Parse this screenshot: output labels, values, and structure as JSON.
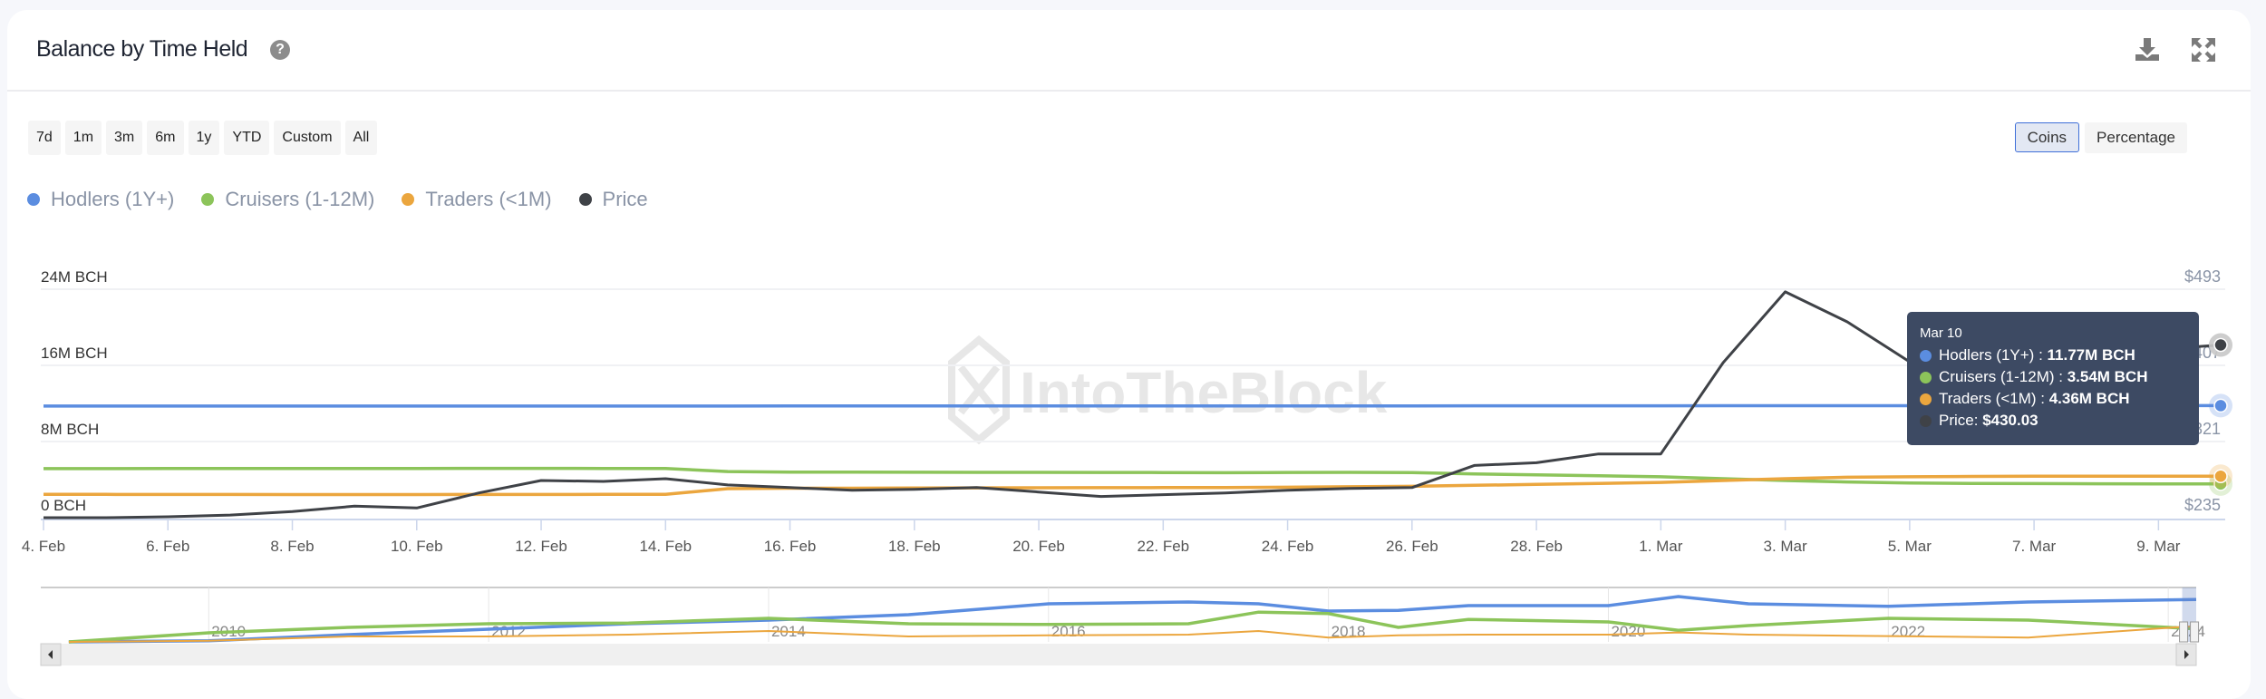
{
  "header": {
    "title": "Balance by Time Held",
    "help_icon": "question-circle-icon",
    "download_icon": "download-icon",
    "expand_icon": "expand-icon"
  },
  "ranges": [
    "7d",
    "1m",
    "3m",
    "6m",
    "1y",
    "YTD",
    "Custom",
    "All"
  ],
  "units": {
    "options": [
      "Coins",
      "Percentage"
    ],
    "selected": "Coins"
  },
  "watermark": "IntoTheBlock",
  "colors": {
    "hodlers": "#5b8de0",
    "cruisers": "#8cc45a",
    "traders": "#eba63e",
    "price": "#3f4247"
  },
  "tooltip": {
    "date": "Mar 10",
    "rows": [
      {
        "label": "Hodlers (1Y+) : ",
        "value": "11.77M BCH"
      },
      {
        "label": "Cruisers (1-12M) : ",
        "value": "3.54M BCH"
      },
      {
        "label": "Traders (<1M) : ",
        "value": "4.36M BCH"
      },
      {
        "label": "Price: ",
        "value": "$430.03"
      }
    ]
  },
  "chart_data": {
    "type": "line",
    "title": "Balance by Time Held",
    "legend": [
      "Hodlers (1Y+)",
      "Cruisers (1-12M)",
      "Traders (<1M)",
      "Price"
    ],
    "legend_position": "top-left",
    "x": [
      "Feb 4",
      "Feb 5",
      "Feb 6",
      "Feb 7",
      "Feb 8",
      "Feb 9",
      "Feb 10",
      "Feb 11",
      "Feb 12",
      "Feb 13",
      "Feb 14",
      "Feb 15",
      "Feb 16",
      "Feb 17",
      "Feb 18",
      "Feb 19",
      "Feb 20",
      "Feb 21",
      "Feb 22",
      "Feb 23",
      "Feb 24",
      "Feb 25",
      "Feb 26",
      "Feb 27",
      "Feb 28",
      "Feb 29",
      "Mar 1",
      "Mar 2",
      "Mar 3",
      "Mar 4",
      "Mar 5",
      "Mar 6",
      "Mar 7",
      "Mar 8",
      "Mar 9",
      "Mar 10"
    ],
    "x_ticks": [
      "4. Feb",
      "6. Feb",
      "8. Feb",
      "10. Feb",
      "12. Feb",
      "14. Feb",
      "16. Feb",
      "18. Feb",
      "20. Feb",
      "22. Feb",
      "24. Feb",
      "26. Feb",
      "28. Feb",
      "1. Mar",
      "3. Mar",
      "5. Mar",
      "7. Mar",
      "9. Mar"
    ],
    "y_left": {
      "ticks": [
        "0 BCH",
        "8M BCH",
        "16M BCH",
        "24M BCH"
      ],
      "range": [
        0,
        24
      ],
      "unit": "M BCH"
    },
    "y_right": {
      "ticks": [
        "$235",
        "$321",
        "$407",
        "$493"
      ],
      "range": [
        235,
        493
      ]
    },
    "series": [
      {
        "name": "Hodlers (1Y+)",
        "axis": "left",
        "values": [
          11.72,
          11.72,
          11.72,
          11.72,
          11.72,
          11.72,
          11.72,
          11.72,
          11.72,
          11.72,
          11.72,
          11.72,
          11.73,
          11.73,
          11.73,
          11.73,
          11.73,
          11.73,
          11.73,
          11.74,
          11.74,
          11.74,
          11.74,
          11.75,
          11.75,
          11.75,
          11.75,
          11.76,
          11.76,
          11.76,
          11.76,
          11.77,
          11.77,
          11.77,
          11.77,
          11.77
        ]
      },
      {
        "name": "Cruisers (1-12M)",
        "axis": "left",
        "values": [
          5.15,
          5.15,
          5.16,
          5.16,
          5.17,
          5.17,
          5.17,
          5.18,
          5.18,
          5.17,
          5.16,
          4.85,
          4.78,
          4.78,
          4.77,
          4.76,
          4.76,
          4.75,
          4.74,
          4.72,
          4.75,
          4.76,
          4.73,
          4.6,
          4.5,
          4.4,
          4.3,
          4.1,
          3.9,
          3.75,
          3.65,
          3.6,
          3.58,
          3.56,
          3.55,
          3.54
        ]
      },
      {
        "name": "Traders (<1M)",
        "axis": "left",
        "values": [
          2.45,
          2.45,
          2.44,
          2.44,
          2.43,
          2.43,
          2.43,
          2.44,
          2.44,
          2.45,
          2.46,
          3.05,
          3.1,
          3.1,
          3.12,
          3.13,
          3.14,
          3.15,
          3.16,
          3.17,
          3.2,
          3.25,
          3.3,
          3.4,
          3.5,
          3.6,
          3.7,
          3.9,
          4.1,
          4.25,
          4.3,
          4.33,
          4.35,
          4.36,
          4.36,
          4.36
        ]
      },
      {
        "name": "Price",
        "axis": "right",
        "values": [
          235,
          235,
          236,
          238,
          242,
          248,
          246,
          263,
          277,
          276,
          279,
          272,
          269,
          266,
          267,
          269,
          264,
          259,
          261,
          263,
          266,
          268,
          269,
          294,
          297,
          307,
          307,
          410,
          490,
          456,
          411,
          405,
          415,
          420,
          425,
          430.03
        ]
      }
    ],
    "navigator": {
      "x_ticks": [
        "2010",
        "2012",
        "2014",
        "2016",
        "2018",
        "2020",
        "2022",
        "2024"
      ],
      "x_range": [
        2008.8,
        2024.2
      ],
      "years": [
        2009,
        2010,
        2011,
        2012,
        2013,
        2014,
        2015,
        2016,
        2017,
        2017.5,
        2018,
        2018.5,
        2019,
        2020,
        2020.5,
        2021,
        2022,
        2023,
        2024.2
      ],
      "series": [
        {
          "name": "Hodlers (1Y+)",
          "values": [
            0,
            0.3,
            2,
            3.5,
            5,
            6,
            7.5,
            10.5,
            11,
            10.5,
            8.5,
            8.7,
            10,
            10,
            12.5,
            10.5,
            9.8,
            11,
            11.7
          ]
        },
        {
          "name": "Cruisers (1-12M)",
          "values": [
            0,
            2.5,
            4,
            5,
            5.2,
            6.5,
            5,
            4.8,
            5,
            8.2,
            7.8,
            4,
            6.2,
            5.5,
            3.2,
            4.5,
            6.5,
            6,
            3.6
          ]
        },
        {
          "name": "Traders (<1M)",
          "values": [
            0,
            0.3,
            1.5,
            1.5,
            2,
            3,
            1.5,
            1.8,
            2,
            3,
            1.2,
            1.8,
            2,
            2,
            2.6,
            2,
            1.6,
            1.2,
            4.4
          ]
        }
      ]
    }
  }
}
